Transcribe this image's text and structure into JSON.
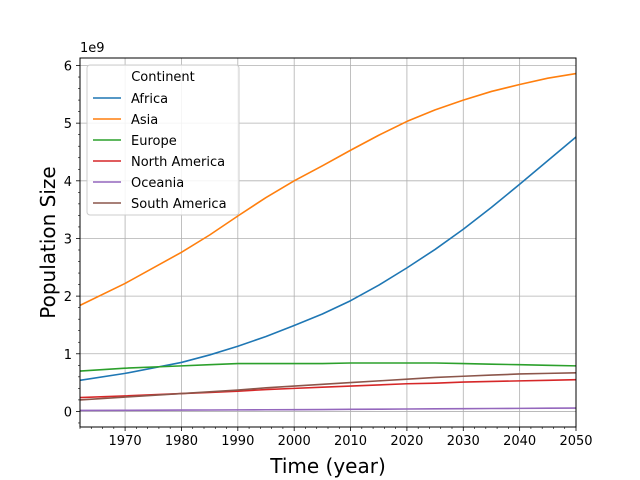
{
  "chart_data": {
    "type": "line",
    "xlabel": "Time (year)",
    "ylabel": "Population Size",
    "y_offset_text": "1e9",
    "xlim": [
      1962,
      2050
    ],
    "ylim": [
      -0.27,
      6.13
    ],
    "x_ticks": [
      1970,
      1980,
      1990,
      2000,
      2010,
      2020,
      2030,
      2040,
      2050
    ],
    "y_ticks": [
      0,
      1,
      2,
      3,
      4,
      5,
      6
    ],
    "x_minor_step": 2,
    "y_minor_step": 0.2,
    "grid": true,
    "legend": {
      "title": "Continent",
      "placement": "top-left"
    },
    "x": [
      1962,
      1970,
      1980,
      1985,
      1990,
      1995,
      2000,
      2005,
      2010,
      2015,
      2020,
      2025,
      2030,
      2035,
      2040,
      2045,
      2050
    ],
    "series": [
      {
        "name": "Africa",
        "color": "#1f77b4",
        "values": [
          0.54,
          0.66,
          0.85,
          0.98,
          1.13,
          1.3,
          1.49,
          1.69,
          1.92,
          2.19,
          2.49,
          2.81,
          3.16,
          3.54,
          3.94,
          4.35,
          4.76
        ]
      },
      {
        "name": "Asia",
        "color": "#ff7f0e",
        "values": [
          1.84,
          2.22,
          2.76,
          3.06,
          3.39,
          3.71,
          4.0,
          4.26,
          4.53,
          4.79,
          5.03,
          5.23,
          5.4,
          5.55,
          5.67,
          5.78,
          5.86
        ]
      },
      {
        "name": "Europe",
        "color": "#2ca02c",
        "values": [
          0.7,
          0.75,
          0.79,
          0.81,
          0.83,
          0.83,
          0.83,
          0.83,
          0.84,
          0.84,
          0.84,
          0.84,
          0.83,
          0.82,
          0.81,
          0.8,
          0.79
        ]
      },
      {
        "name": "North America",
        "color": "#d62728",
        "values": [
          0.24,
          0.27,
          0.31,
          0.33,
          0.35,
          0.38,
          0.4,
          0.42,
          0.44,
          0.46,
          0.48,
          0.49,
          0.51,
          0.52,
          0.53,
          0.54,
          0.55
        ]
      },
      {
        "name": "Oceania",
        "color": "#9467bd",
        "values": [
          0.017,
          0.02,
          0.023,
          0.025,
          0.027,
          0.029,
          0.031,
          0.033,
          0.036,
          0.039,
          0.042,
          0.045,
          0.048,
          0.051,
          0.053,
          0.056,
          0.058
        ]
      },
      {
        "name": "South America",
        "color": "#8c564b",
        "values": [
          0.2,
          0.25,
          0.31,
          0.34,
          0.37,
          0.41,
          0.44,
          0.47,
          0.5,
          0.53,
          0.56,
          0.59,
          0.61,
          0.63,
          0.65,
          0.66,
          0.67
        ]
      }
    ]
  },
  "colors": {
    "grid": "#b0b0b0",
    "axes": "#000000",
    "legend_border": "#cccccc"
  }
}
